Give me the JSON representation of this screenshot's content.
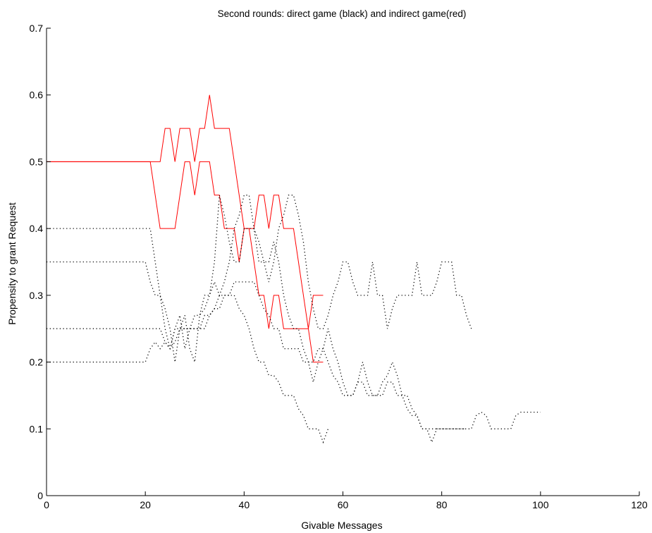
{
  "chart_data": {
    "type": "line",
    "title": "Second rounds: direct game (black) and indirect game(red)",
    "xlabel": "Givable Messages",
    "ylabel": "Propensity to grant Request",
    "xlim": [
      0,
      120
    ],
    "ylim": [
      0,
      0.7
    ],
    "xticks": [
      0,
      20,
      40,
      60,
      80,
      100,
      120
    ],
    "yticks": [
      0,
      0.1,
      0.2,
      0.3,
      0.4,
      0.5,
      0.6,
      0.7
    ],
    "xtick_labels": [
      "0",
      "20",
      "40",
      "60",
      "80",
      "100",
      "120"
    ],
    "ytick_labels": [
      "0",
      "0.1",
      "0.2",
      "0.3",
      "0.4",
      "0.5",
      "0.6",
      "0.7"
    ],
    "grid": false,
    "series": [
      {
        "color": "#ff0000",
        "style": "solid",
        "x": [
          0,
          23,
          24,
          25,
          26,
          27,
          28,
          29,
          30,
          31,
          32,
          33,
          34,
          35,
          36,
          37,
          38,
          39,
          40,
          41,
          42,
          43,
          44,
          45,
          46,
          47,
          48,
          49,
          50,
          51,
          52,
          53,
          54,
          55,
          56
        ],
        "y": [
          0.5,
          0.5,
          0.55,
          0.55,
          0.5,
          0.55,
          0.55,
          0.55,
          0.5,
          0.55,
          0.55,
          0.6,
          0.55,
          0.55,
          0.55,
          0.55,
          0.5,
          0.45,
          0.4,
          0.4,
          0.4,
          0.45,
          0.45,
          0.4,
          0.45,
          0.45,
          0.4,
          0.4,
          0.4,
          0.35,
          0.3,
          0.25,
          0.3,
          0.3,
          0.3
        ]
      },
      {
        "color": "#ff0000",
        "style": "solid",
        "x": [
          0,
          21,
          22,
          23,
          24,
          25,
          26,
          27,
          28,
          29,
          30,
          31,
          32,
          33,
          34,
          35,
          36,
          37,
          38,
          39,
          40,
          41,
          42,
          43,
          44,
          45,
          46,
          47,
          48,
          49,
          50,
          51,
          52,
          53,
          54,
          55,
          56
        ],
        "y": [
          0.5,
          0.5,
          0.45,
          0.4,
          0.4,
          0.4,
          0.4,
          0.45,
          0.5,
          0.5,
          0.45,
          0.5,
          0.5,
          0.5,
          0.45,
          0.45,
          0.4,
          0.4,
          0.4,
          0.35,
          0.4,
          0.4,
          0.35,
          0.3,
          0.3,
          0.25,
          0.3,
          0.3,
          0.25,
          0.25,
          0.25,
          0.25,
          0.25,
          0.25,
          0.2,
          0.2,
          0.2
        ]
      },
      {
        "color": "#000000",
        "style": "dotted",
        "x": [
          0,
          21,
          22,
          23,
          24,
          25,
          26,
          27,
          28,
          29,
          30,
          31,
          32,
          33,
          34,
          35,
          36,
          37,
          38,
          39,
          40,
          41,
          42,
          43,
          44,
          45,
          46,
          47,
          48,
          49,
          50,
          51,
          52,
          53,
          54,
          55,
          56,
          57,
          58,
          59,
          60,
          61,
          62,
          63,
          64,
          65,
          66,
          67,
          68,
          69,
          70,
          71,
          72,
          73,
          74,
          75,
          76,
          77,
          78,
          79,
          80,
          81,
          82,
          83,
          84,
          85,
          86
        ],
        "y": [
          0.4,
          0.4,
          0.35,
          0.3,
          0.25,
          0.22,
          0.25,
          0.27,
          0.22,
          0.25,
          0.27,
          0.27,
          0.3,
          0.3,
          0.35,
          0.45,
          0.42,
          0.38,
          0.35,
          0.35,
          0.4,
          0.4,
          0.4,
          0.35,
          0.35,
          0.32,
          0.35,
          0.4,
          0.42,
          0.45,
          0.45,
          0.42,
          0.38,
          0.32,
          0.28,
          0.25,
          0.25,
          0.27,
          0.3,
          0.32,
          0.35,
          0.35,
          0.32,
          0.3,
          0.3,
          0.3,
          0.35,
          0.3,
          0.3,
          0.25,
          0.28,
          0.3,
          0.3,
          0.3,
          0.3,
          0.35,
          0.3,
          0.3,
          0.3,
          0.32,
          0.35,
          0.35,
          0.35,
          0.3,
          0.3,
          0.27,
          0.25
        ]
      },
      {
        "color": "#000000",
        "style": "dotted",
        "x": [
          0,
          20,
          21,
          22,
          23,
          24,
          25,
          26,
          27,
          28,
          29,
          30,
          31,
          32,
          33,
          34,
          35,
          36,
          37,
          38,
          39,
          40,
          41,
          42,
          43,
          44,
          45,
          46,
          47,
          48,
          49,
          50,
          51,
          52,
          53,
          54,
          55,
          56,
          57,
          58,
          59,
          60,
          61,
          62,
          63,
          64,
          65,
          66,
          67,
          68,
          69,
          70,
          71,
          72,
          73,
          74,
          75,
          76,
          77,
          78,
          79,
          80,
          81,
          82,
          83,
          84,
          85,
          86,
          87,
          88,
          89,
          90,
          91,
          92,
          93,
          94,
          95,
          96,
          97,
          98,
          99,
          100
        ],
        "y": [
          0.35,
          0.35,
          0.32,
          0.3,
          0.3,
          0.28,
          0.25,
          0.2,
          0.25,
          0.27,
          0.22,
          0.2,
          0.27,
          0.28,
          0.3,
          0.32,
          0.3,
          0.32,
          0.35,
          0.4,
          0.42,
          0.45,
          0.45,
          0.4,
          0.38,
          0.35,
          0.35,
          0.38,
          0.35,
          0.3,
          0.27,
          0.25,
          0.25,
          0.22,
          0.2,
          0.17,
          0.2,
          0.22,
          0.25,
          0.22,
          0.2,
          0.17,
          0.15,
          0.15,
          0.17,
          0.2,
          0.17,
          0.15,
          0.15,
          0.15,
          0.17,
          0.17,
          0.15,
          0.15,
          0.13,
          0.12,
          0.12,
          0.1,
          0.1,
          0.1,
          0.1,
          0.1,
          0.1,
          0.1,
          0.1,
          0.1,
          0.1,
          0.1,
          0.12,
          0.125,
          0.12,
          0.1,
          0.1,
          0.1,
          0.1,
          0.1,
          0.12,
          0.125,
          0.125,
          0.125,
          0.125,
          0.125
        ]
      },
      {
        "color": "#000000",
        "style": "dotted",
        "x": [
          0,
          21,
          22,
          23,
          24,
          25,
          26,
          27,
          28,
          29,
          30,
          31,
          32,
          33,
          34,
          35,
          36,
          37,
          38,
          39,
          40,
          41,
          42,
          43,
          44,
          45,
          46,
          47,
          48,
          49,
          50,
          51,
          52,
          53,
          54,
          55,
          56,
          57,
          58,
          59,
          60,
          61,
          62,
          63,
          64,
          65,
          66,
          67,
          68,
          69,
          70,
          71,
          72,
          73,
          74,
          75,
          76,
          77,
          78,
          79,
          80,
          81,
          82,
          83,
          84,
          85
        ],
        "y": [
          0.25,
          0.25,
          0.25,
          0.25,
          0.23,
          0.22,
          0.25,
          0.25,
          0.25,
          0.25,
          0.25,
          0.25,
          0.25,
          0.27,
          0.28,
          0.3,
          0.3,
          0.3,
          0.32,
          0.32,
          0.32,
          0.32,
          0.32,
          0.3,
          0.28,
          0.27,
          0.25,
          0.25,
          0.22,
          0.22,
          0.22,
          0.22,
          0.2,
          0.2,
          0.2,
          0.22,
          0.22,
          0.2,
          0.18,
          0.17,
          0.15,
          0.15,
          0.15,
          0.17,
          0.17,
          0.15,
          0.15,
          0.15,
          0.17,
          0.18,
          0.2,
          0.18,
          0.15,
          0.15,
          0.13,
          0.12,
          0.1,
          0.1,
          0.08,
          0.1,
          0.1,
          0.1,
          0.1,
          0.1,
          0.1,
          0.1
        ]
      },
      {
        "color": "#000000",
        "style": "dotted",
        "x": [
          0,
          20,
          21,
          22,
          23,
          24,
          25,
          26,
          27,
          28,
          29,
          30,
          31,
          32,
          33,
          34,
          35,
          36,
          37,
          38,
          39,
          40,
          41,
          42,
          43,
          44,
          45,
          46,
          47,
          48,
          49,
          50,
          51,
          52,
          53,
          54,
          55,
          56,
          57
        ],
        "y": [
          0.2,
          0.2,
          0.22,
          0.23,
          0.22,
          0.23,
          0.22,
          0.23,
          0.25,
          0.25,
          0.25,
          0.25,
          0.25,
          0.27,
          0.27,
          0.28,
          0.28,
          0.3,
          0.3,
          0.3,
          0.28,
          0.27,
          0.25,
          0.22,
          0.2,
          0.2,
          0.18,
          0.18,
          0.17,
          0.15,
          0.15,
          0.15,
          0.13,
          0.12,
          0.1,
          0.1,
          0.1,
          0.08,
          0.1
        ]
      }
    ]
  }
}
